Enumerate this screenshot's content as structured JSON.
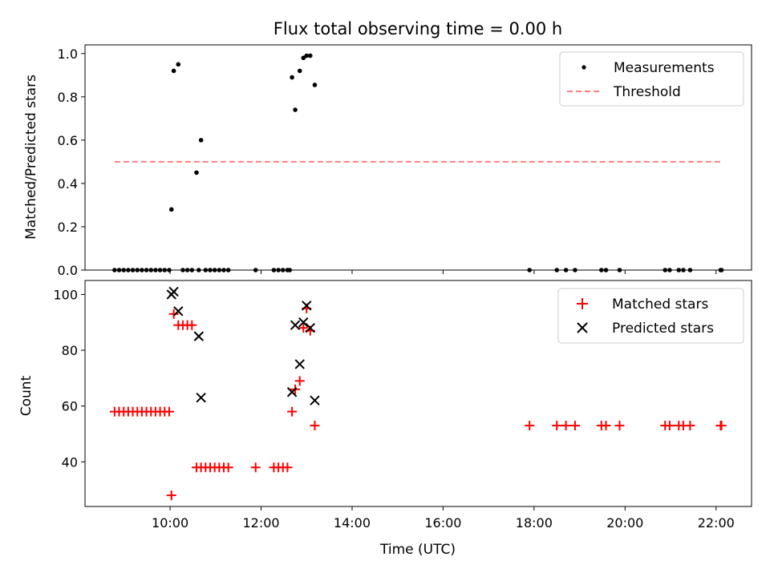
{
  "title": "Flux total observing time = 0.00 h",
  "chart_data": [
    {
      "type": "scatter",
      "ylabel": "Matched/Predicted stars",
      "xlim": [
        8.13,
        22.78
      ],
      "ylim": [
        0,
        1.04
      ],
      "yticks": [
        0,
        0.2,
        0.4,
        0.6,
        0.8,
        1.0
      ],
      "ytick_labels": [
        "0.0",
        "0.2",
        "0.4",
        "0.6",
        "0.8",
        "1.0"
      ],
      "legend_position": "top-right",
      "legend": [
        "Measurements",
        "Threshold"
      ],
      "series": [
        {
          "name": "Measurements",
          "marker": "dot",
          "color": "#000000",
          "x": [
            8.78,
            8.88,
            8.98,
            9.08,
            9.18,
            9.28,
            9.38,
            9.48,
            9.58,
            9.68,
            9.78,
            9.88,
            9.98,
            10.03,
            10.08,
            10.18,
            10.28,
            10.38,
            10.48,
            10.58,
            10.63,
            10.68,
            10.78,
            10.88,
            10.98,
            11.08,
            11.18,
            11.28,
            11.88,
            12.28,
            12.38,
            12.48,
            12.58,
            12.63,
            12.68,
            12.75,
            12.85,
            12.93,
            13.0,
            13.08,
            13.18,
            17.9,
            18.5,
            18.7,
            18.9,
            19.48,
            19.58,
            19.88,
            20.88,
            20.98,
            21.18,
            21.28,
            21.43,
            22.1,
            22.12
          ],
          "y": [
            0,
            0,
            0,
            0,
            0,
            0,
            0,
            0,
            0,
            0,
            0,
            0,
            0,
            0.28,
            0.92,
            0.95,
            0,
            0,
            0,
            0.45,
            0,
            0.6,
            0,
            0,
            0,
            0,
            0,
            0,
            0,
            0,
            0,
            0,
            0,
            0,
            0.89,
            0.74,
            0.92,
            0.98,
            0.99,
            0.99,
            0.855,
            0,
            0,
            0,
            0,
            0,
            0,
            0,
            0,
            0,
            0,
            0,
            0,
            0,
            0
          ]
        },
        {
          "name": "Threshold",
          "style": "dashed",
          "color": "#ff7f7f",
          "x": [
            8.78,
            22.12
          ],
          "y": [
            0.5,
            0.5
          ]
        }
      ]
    },
    {
      "type": "scatter",
      "ylabel": "Count",
      "xlabel": "Time (UTC)",
      "xlim": [
        8.13,
        22.78
      ],
      "ylim": [
        24,
        105
      ],
      "yticks": [
        40,
        60,
        80,
        100
      ],
      "ytick_labels": [
        "40",
        "60",
        "80",
        "100"
      ],
      "xticks": [
        10,
        12,
        14,
        16,
        18,
        20,
        22
      ],
      "xtick_labels": [
        "10:00",
        "12:00",
        "14:00",
        "16:00",
        "18:00",
        "20:00",
        "22:00"
      ],
      "legend_position": "top-right",
      "legend": [
        "Matched stars",
        "Predicted stars"
      ],
      "series": [
        {
          "name": "Matched stars",
          "marker": "plus",
          "color": "#ff0000",
          "x": [
            8.78,
            8.88,
            8.98,
            9.08,
            9.18,
            9.28,
            9.38,
            9.48,
            9.58,
            9.68,
            9.78,
            9.88,
            9.98,
            10.03,
            10.08,
            10.18,
            10.28,
            10.38,
            10.48,
            10.58,
            10.68,
            10.78,
            10.88,
            10.98,
            11.08,
            11.18,
            11.28,
            11.88,
            12.28,
            12.38,
            12.48,
            12.58,
            12.68,
            12.75,
            12.85,
            12.93,
            13.0,
            13.08,
            13.18,
            17.9,
            18.5,
            18.7,
            18.9,
            19.48,
            19.58,
            19.88,
            20.88,
            20.98,
            21.18,
            21.28,
            21.43,
            22.1,
            22.12
          ],
          "y": [
            58,
            58,
            58,
            58,
            58,
            58,
            58,
            58,
            58,
            58,
            58,
            58,
            58,
            28,
            93,
            89,
            89,
            89,
            89,
            38,
            38,
            38,
            38,
            38,
            38,
            38,
            38,
            38,
            38,
            38,
            38,
            38,
            58,
            66,
            69,
            88,
            95,
            87,
            53,
            53,
            53,
            53,
            53,
            53,
            53,
            53,
            53,
            53,
            53,
            53,
            53,
            53,
            53
          ]
        },
        {
          "name": "Predicted stars",
          "marker": "x",
          "color": "#000000",
          "x": [
            10.03,
            10.08,
            10.18,
            10.63,
            10.68,
            12.68,
            12.75,
            12.85,
            12.93,
            13.0,
            13.08,
            13.18
          ],
          "y": [
            100,
            101,
            94,
            85,
            63,
            65,
            89,
            75,
            90,
            96,
            88,
            62
          ]
        }
      ]
    }
  ]
}
